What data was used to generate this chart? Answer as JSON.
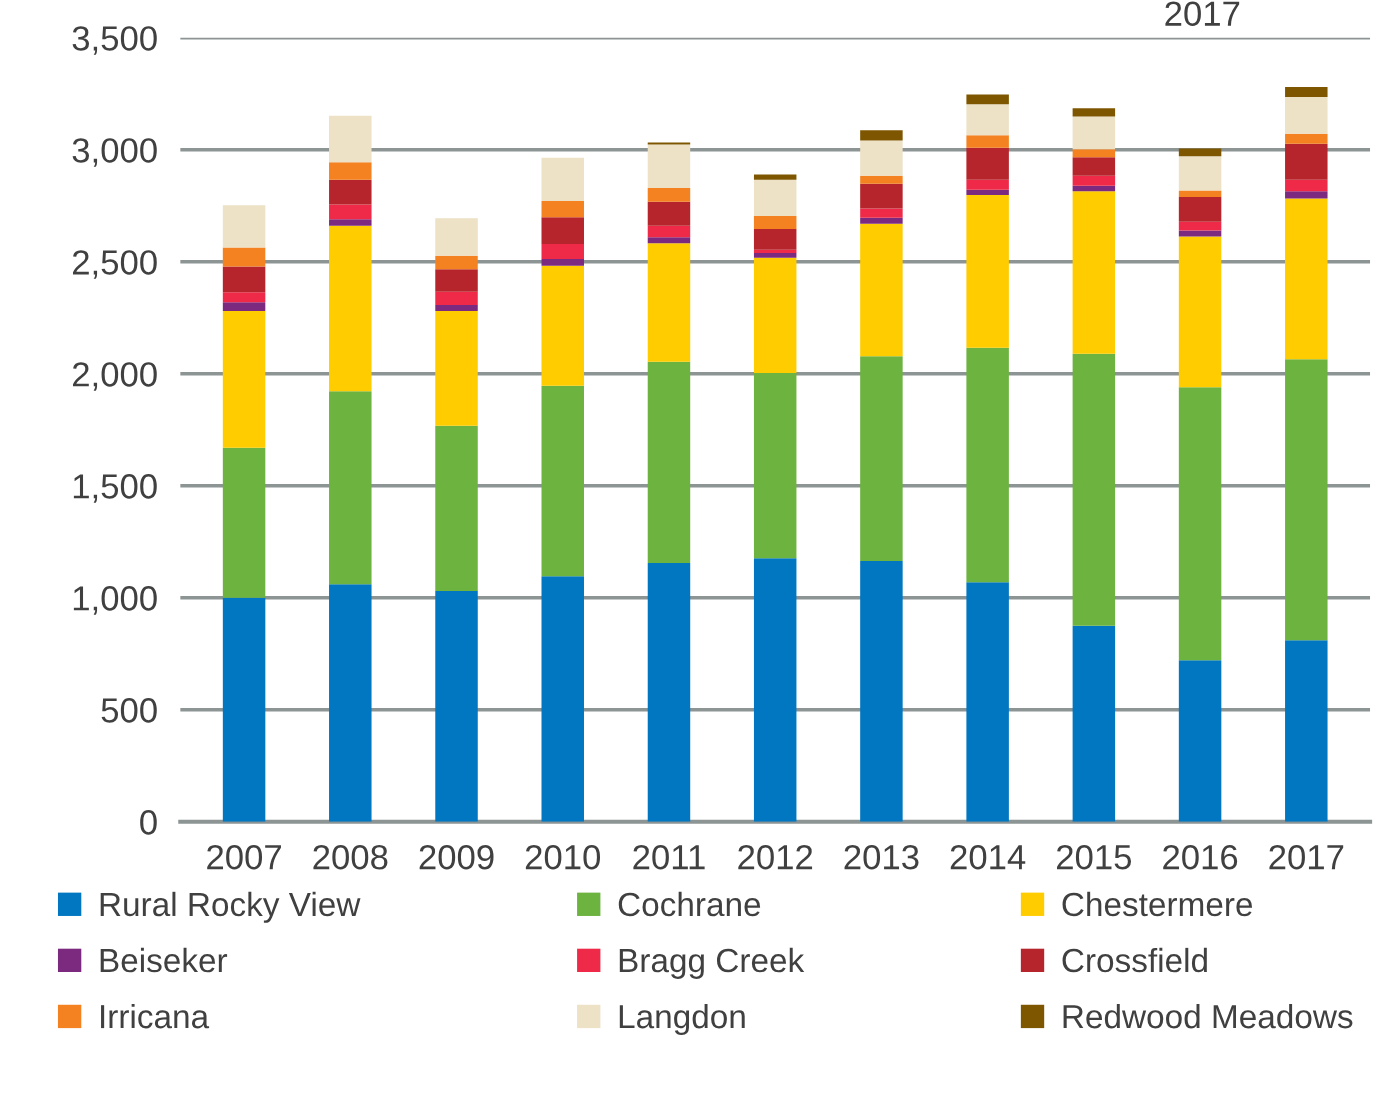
{
  "chart_data": {
    "type": "bar",
    "stacked": true,
    "categories": [
      "2007",
      "2008",
      "2009",
      "2010",
      "2011",
      "2012",
      "2013",
      "2014",
      "2015",
      "2016",
      "2017"
    ],
    "series": [
      {
        "name": "Rural Rocky View",
        "color": "#0077c0",
        "values": [
          1000,
          1060,
          1030,
          1096,
          1155,
          1176,
          1164,
          1069,
          875,
          721,
          810
        ]
      },
      {
        "name": "Cochrane",
        "color": "#6db33f",
        "values": [
          670,
          862,
          738,
          851,
          899,
          827,
          914,
          1047,
          1214,
          1219,
          1255
        ]
      },
      {
        "name": "Chestermere",
        "color": "#ffcc00",
        "values": [
          610,
          739,
          512,
          535,
          529,
          515,
          592,
          682,
          726,
          673,
          718
        ]
      },
      {
        "name": "Beiseker",
        "color": "#7b2a7f",
        "values": [
          39,
          29,
          27,
          30,
          27,
          21,
          27,
          24,
          24,
          27,
          32
        ]
      },
      {
        "name": "Bragg Creek",
        "color": "#ef2a48",
        "values": [
          45,
          66,
          59,
          68,
          51,
          15,
          41,
          44,
          45,
          39,
          51
        ]
      },
      {
        "name": "Crossfield",
        "color": "#b5252b",
        "values": [
          115,
          110,
          101,
          119,
          107,
          92,
          110,
          143,
          83,
          110,
          161
        ]
      },
      {
        "name": "Irricana",
        "color": "#f58220",
        "values": [
          85,
          78,
          60,
          72,
          62,
          59,
          36,
          56,
          36,
          29,
          45
        ]
      },
      {
        "name": "Langdon",
        "color": "#ede1c6",
        "values": [
          188,
          208,
          167,
          193,
          194,
          161,
          158,
          138,
          146,
          153,
          164
        ]
      },
      {
        "name": "Redwood Meadows",
        "color": "#7f5600",
        "values": [
          0,
          0,
          0,
          0,
          9,
          24,
          45,
          44,
          36,
          35,
          44
        ]
      }
    ],
    "ylim": [
      0,
      3500
    ],
    "yticks": [
      {
        "value": 0,
        "label": "0"
      },
      {
        "value": 500,
        "label": "500"
      },
      {
        "value": 1000,
        "label": "1,000"
      },
      {
        "value": 1500,
        "label": "1,500"
      },
      {
        "value": 2000,
        "label": "2,000"
      },
      {
        "value": 2500,
        "label": "2,500"
      },
      {
        "value": 3000,
        "label": "3,000"
      },
      {
        "value": 3500,
        "label": "3,500"
      }
    ],
    "grid": "y",
    "legend": "bottom",
    "annotations": [
      "2017"
    ]
  }
}
